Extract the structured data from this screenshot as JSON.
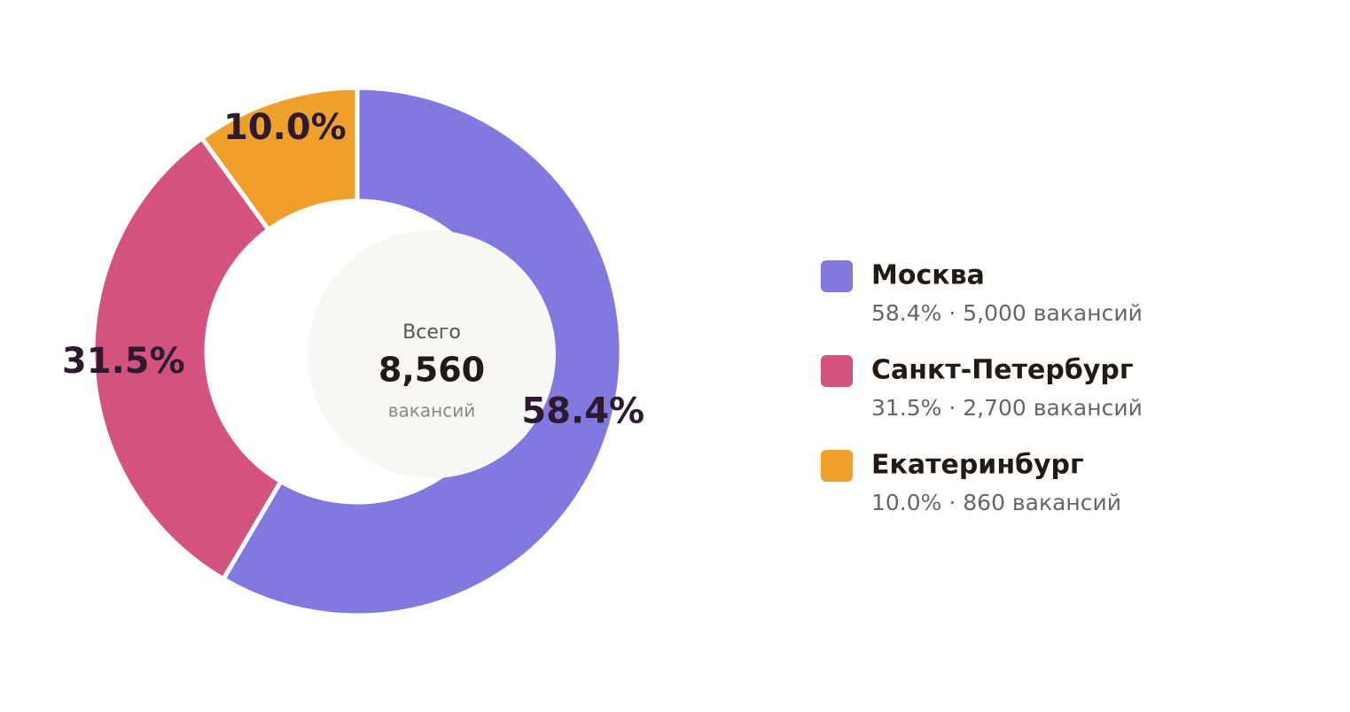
{
  "chart_data": {
    "type": "pie",
    "categories": [
      "Москва",
      "Санкт-Петербург",
      "Екатеринбург"
    ],
    "values": [
      58.4,
      31.5,
      10.0
    ],
    "value_labels": [
      "58.4%",
      "31.5%",
      "10.0%"
    ],
    "colors": [
      "#8179e0",
      "#d4527e",
      "#efa02a"
    ],
    "legend_details": [
      "58.4% · 5,000 вакансий",
      "31.5% · 2,700 вакансий",
      "10.0% · 860 вакансий"
    ],
    "center": {
      "title": "Всего",
      "value": "8,560",
      "unit": "вакансий"
    }
  }
}
